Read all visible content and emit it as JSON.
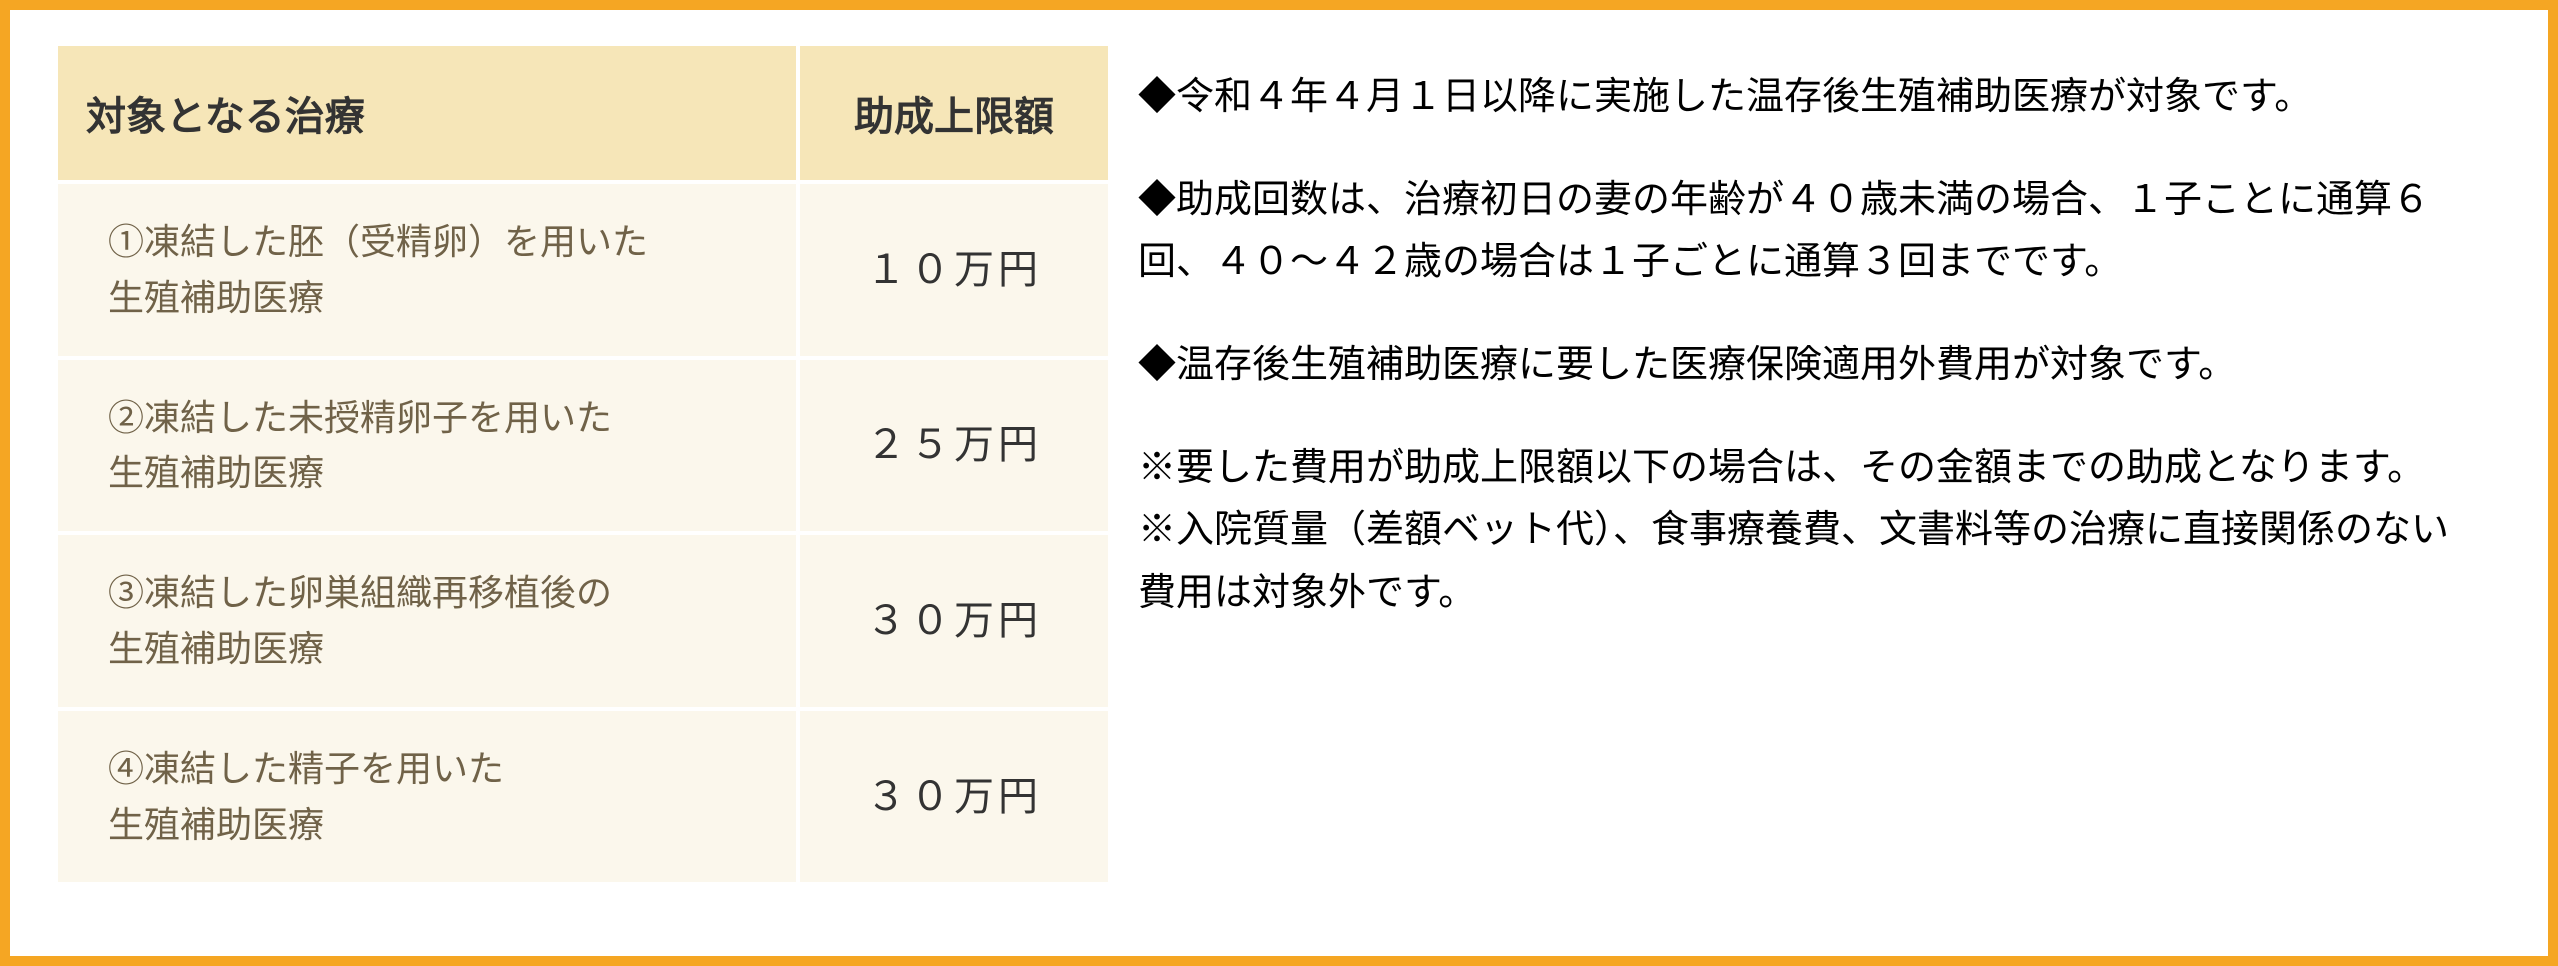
{
  "table": {
    "columns": [
      "対象となる治療",
      "助成上限額"
    ],
    "rows": [
      {
        "treatment": "①凍結した胚（受精卵）を用いた\n生殖補助医療",
        "amount": "１０万円"
      },
      {
        "treatment": "②凍結した未授精卵子を用いた\n生殖補助医療",
        "amount": "２５万円"
      },
      {
        "treatment": "③凍結した卵巣組織再移植後の\n生殖補助医療",
        "amount": "３０万円"
      },
      {
        "treatment": "④凍結した精子を用いた\n生殖補助医療",
        "amount": "３０万円"
      }
    ],
    "header_bg": "#f6e6b8",
    "cell_bg": "#fbf7ec",
    "cell_text_color": "#706248",
    "header_text_color": "#333333",
    "header_fontsize": 40,
    "cell_fontsize": 36,
    "amount_fontsize": 40,
    "border_color": "#ffffff"
  },
  "notes": {
    "n1": "◆令和４年４月１日以降に実施した温存後生殖補助医療が対象です。",
    "n2": "◆助成回数は、治療初日の妻の年齢が４０歳未満の場合、１子ことに通算６回、４０～４２歳の場合は１子ごとに通算３回までです。",
    "n3": "◆温存後生殖補助医療に要した医療保険適用外費用が対象です。",
    "s1": "※要した費用が助成上限額以下の場合は、その金額までの助成となります。",
    "s2": "※入院質量（差額ベット代）、食事療養費、文書料等の治療に直接関係のない費用は対象外です。",
    "fontsize": 38,
    "text_color": "#000000"
  },
  "frame": {
    "border_color": "#f5a623",
    "border_width": 10,
    "background": "#ffffff"
  }
}
